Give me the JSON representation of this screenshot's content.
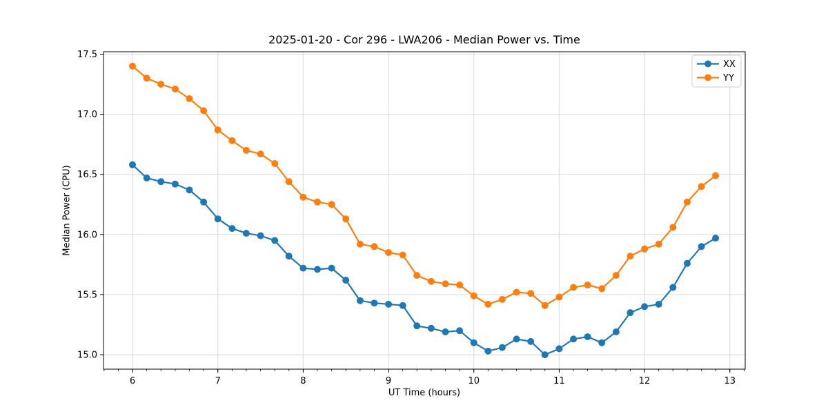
{
  "chart_data": {
    "type": "line",
    "title": "2025-01-20 - Cor 296 - LWA206 - Median Power vs. Time",
    "xlabel": "UT Time (hours)",
    "ylabel": "Median Power (CPU)",
    "xlim": [
      5.66,
      13.18
    ],
    "ylim": [
      14.88,
      17.52
    ],
    "xticks": [
      6,
      7,
      8,
      9,
      10,
      11,
      12,
      13
    ],
    "yticks": [
      15.0,
      15.5,
      16.0,
      16.5,
      17.0,
      17.5
    ],
    "minor_xtick_step": 0.166667,
    "grid": true,
    "grid_color": "#d9d9d9",
    "legend": {
      "position": "upper right",
      "entries": [
        "XX",
        "YY"
      ]
    },
    "x": [
      6.0,
      6.167,
      6.333,
      6.5,
      6.667,
      6.833,
      7.0,
      7.167,
      7.333,
      7.5,
      7.667,
      7.833,
      8.0,
      8.167,
      8.333,
      8.5,
      8.667,
      8.833,
      9.0,
      9.167,
      9.333,
      9.5,
      9.667,
      9.833,
      10.0,
      10.167,
      10.333,
      10.5,
      10.667,
      10.833,
      11.0,
      11.167,
      11.333,
      11.5,
      11.667,
      11.833,
      12.0,
      12.167,
      12.333,
      12.5,
      12.667,
      12.833
    ],
    "series": [
      {
        "name": "XX",
        "color": "#1f77b4",
        "marker": "circle",
        "values": [
          16.58,
          16.47,
          16.44,
          16.42,
          16.37,
          16.27,
          16.13,
          16.05,
          16.01,
          15.99,
          15.95,
          15.82,
          15.72,
          15.71,
          15.72,
          15.62,
          15.45,
          15.43,
          15.42,
          15.41,
          15.24,
          15.22,
          15.19,
          15.2,
          15.1,
          15.03,
          15.06,
          15.13,
          15.11,
          15.0,
          15.05,
          15.13,
          15.15,
          15.1,
          15.19,
          15.35,
          15.4,
          15.42,
          15.56,
          15.76,
          15.9,
          15.97
        ]
      },
      {
        "name": "YY",
        "color": "#ff7f0e",
        "marker": "circle",
        "values": [
          17.4,
          17.3,
          17.25,
          17.21,
          17.13,
          17.03,
          16.87,
          16.78,
          16.7,
          16.67,
          16.59,
          16.44,
          16.31,
          16.27,
          16.25,
          16.13,
          15.92,
          15.9,
          15.85,
          15.83,
          15.66,
          15.61,
          15.59,
          15.58,
          15.49,
          15.42,
          15.46,
          15.52,
          15.51,
          15.41,
          15.48,
          15.56,
          15.58,
          15.55,
          15.66,
          15.82,
          15.88,
          15.92,
          16.06,
          16.27,
          16.4,
          16.49
        ]
      }
    ]
  }
}
